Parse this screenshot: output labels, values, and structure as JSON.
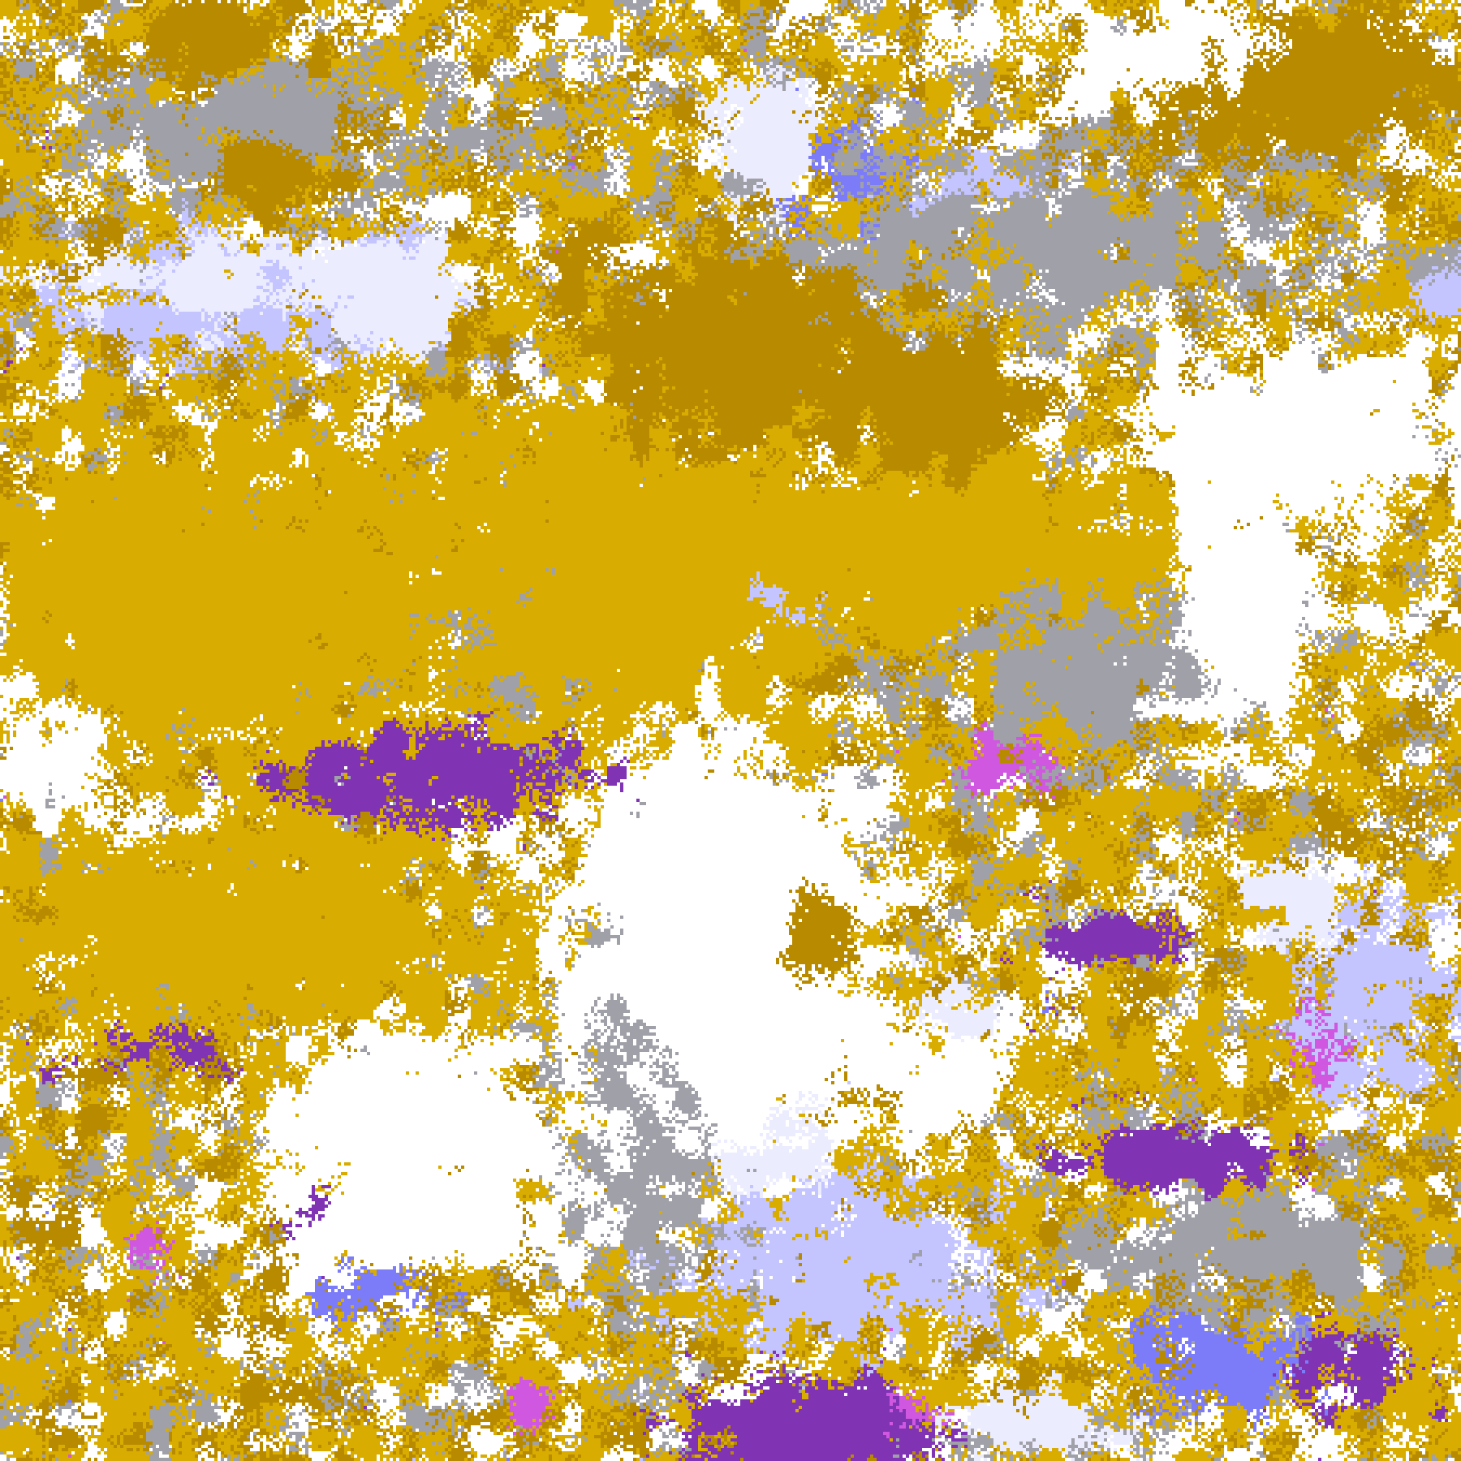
{
  "map": {
    "kind": "classified satellite cloud-type image",
    "class_colors": {
      "clear": "#ffffff",
      "low_gold_light": "#d8ac00",
      "low_gold_dark": "#b88a00",
      "gray": "#a0a0a8",
      "thin_lavender": "#c4c4ff",
      "pale_cloud": "#ececff",
      "periwinkle": "#7c7cf8",
      "magenta": "#d058e0",
      "purple": "#8034b4"
    }
  }
}
